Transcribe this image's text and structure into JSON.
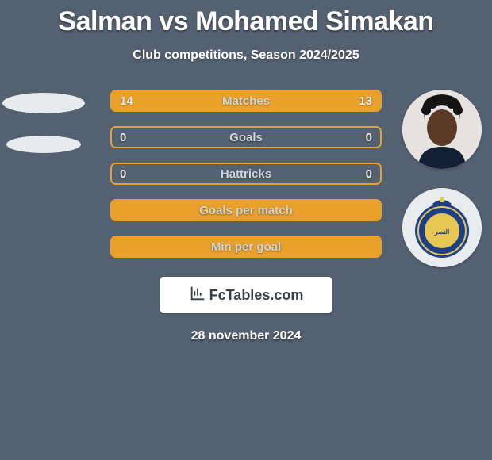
{
  "title": "Salman vs Mohamed Simakan",
  "subtitle": "Club competitions, Season 2024/2025",
  "colors": {
    "accent": "#e9a12c",
    "accent_fill": "#e9a12c",
    "bar_border": "#e9a12c",
    "background": "#546171",
    "text_muted": "#cdd4db"
  },
  "bars": [
    {
      "label": "Matches",
      "left_value": "14",
      "right_value": "13",
      "left_pct": 51.9,
      "right_pct": 48.1,
      "show_values": true
    },
    {
      "label": "Goals",
      "left_value": "0",
      "right_value": "0",
      "left_pct": 0,
      "right_pct": 0,
      "show_values": true
    },
    {
      "label": "Hattricks",
      "left_value": "0",
      "right_value": "0",
      "left_pct": 0,
      "right_pct": 0,
      "show_values": true
    },
    {
      "label": "Goals per match",
      "left_value": "",
      "right_value": "",
      "left_pct": 100,
      "right_pct": 0,
      "show_values": false
    },
    {
      "label": "Min per goal",
      "left_value": "",
      "right_value": "",
      "left_pct": 100,
      "right_pct": 0,
      "show_values": false
    }
  ],
  "left_player": {
    "has_avatar": false
  },
  "right_player": {
    "has_avatar": true,
    "has_crest": true
  },
  "footer": {
    "brand": "FcTables.com",
    "date": "28 november 2024"
  }
}
